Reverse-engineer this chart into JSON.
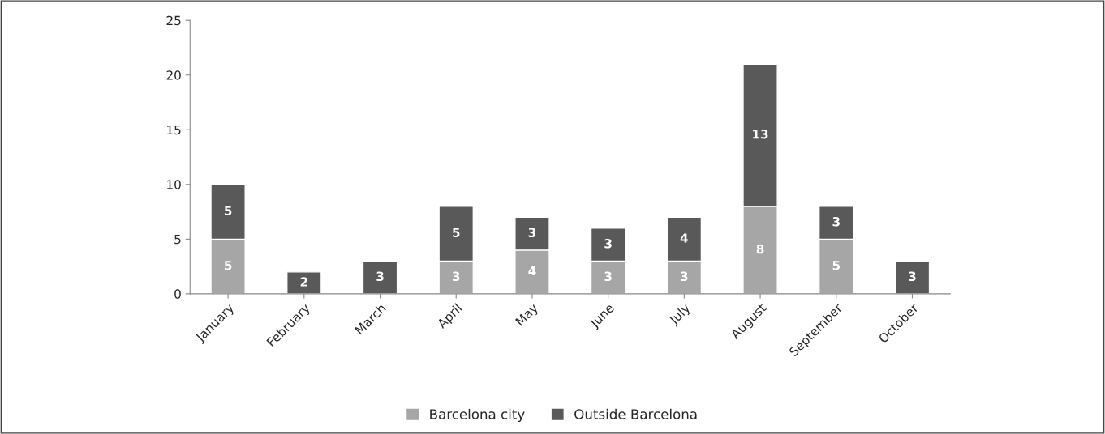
{
  "chart_data": {
    "type": "bar",
    "stacked": true,
    "categories": [
      "January",
      "February",
      "March",
      "April",
      "May",
      "June",
      "July",
      "August",
      "September",
      "October"
    ],
    "series": [
      {
        "name": "Barcelona city",
        "color": "#a6a6a6",
        "values": [
          5,
          null,
          null,
          3,
          4,
          3,
          3,
          8,
          5,
          null
        ]
      },
      {
        "name": "Outside Barcelona",
        "color": "#595959",
        "values": [
          5,
          2,
          3,
          5,
          3,
          3,
          4,
          13,
          3,
          3
        ]
      }
    ],
    "ylim": [
      0,
      25
    ],
    "yticks": [
      0,
      5,
      10,
      15,
      20,
      25
    ],
    "grid": false,
    "legend": "bottom",
    "data_labels": true
  }
}
